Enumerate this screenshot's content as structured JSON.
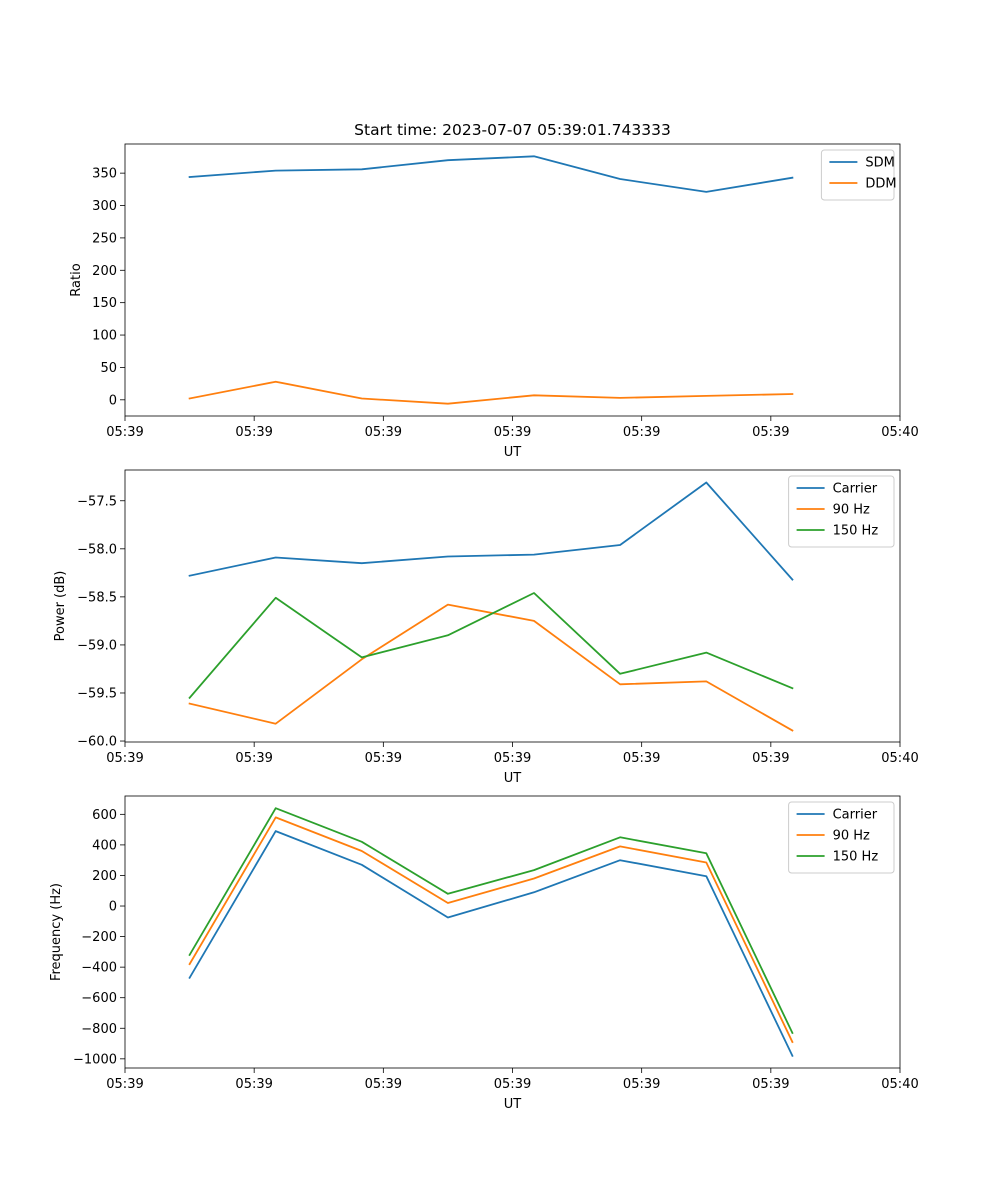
{
  "chart_data": [
    {
      "type": "line",
      "title": "Start time: 2023-07-07 05:39:01.743333",
      "xlabel": "UT",
      "ylabel": "Ratio",
      "x": [
        1,
        2,
        3,
        4,
        5,
        6,
        7,
        8
      ],
      "xlim": [
        0.25,
        9.25
      ],
      "x_ticks": [
        0.25,
        1.75,
        3.25,
        4.75,
        6.25,
        7.75,
        9.25
      ],
      "x_tick_labels": [
        "05:39",
        "05:39",
        "05:39",
        "05:39",
        "05:39",
        "05:39",
        "05:40"
      ],
      "ylim": [
        -25,
        395
      ],
      "y_ticks": [
        0,
        50,
        100,
        150,
        200,
        250,
        300,
        350
      ],
      "y_tick_labels": [
        "0",
        "50",
        "100",
        "150",
        "200",
        "250",
        "300",
        "350"
      ],
      "legend_position": "top-right",
      "series": [
        {
          "name": "SDM",
          "color": "#1f77b4",
          "values": [
            344,
            354,
            356,
            370,
            376,
            341,
            321,
            343
          ]
        },
        {
          "name": "DDM",
          "color": "#ff7f0e",
          "values": [
            2,
            28,
            2,
            -6,
            7,
            3,
            6,
            9
          ]
        }
      ]
    },
    {
      "type": "line",
      "title": "",
      "xlabel": "UT",
      "ylabel": "Power (dB)",
      "x": [
        1,
        2,
        3,
        4,
        5,
        6,
        7,
        8
      ],
      "xlim": [
        0.25,
        9.25
      ],
      "x_ticks": [
        0.25,
        1.75,
        3.25,
        4.75,
        6.25,
        7.75,
        9.25
      ],
      "x_tick_labels": [
        "05:39",
        "05:39",
        "05:39",
        "05:39",
        "05:39",
        "05:39",
        "05:40"
      ],
      "ylim": [
        -60.01,
        -57.18
      ],
      "y_ticks": [
        -60.0,
        -59.5,
        -59.0,
        -58.5,
        -58.0,
        -57.5
      ],
      "y_tick_labels": [
        "−60.0",
        "−59.5",
        "−59.0",
        "−58.5",
        "−58.0",
        "−57.5"
      ],
      "legend_position": "top-right",
      "series": [
        {
          "name": "Carrier",
          "color": "#1f77b4",
          "values": [
            -58.28,
            -58.09,
            -58.15,
            -58.08,
            -58.06,
            -57.96,
            -57.31,
            -58.32
          ]
        },
        {
          "name": "90 Hz",
          "color": "#ff7f0e",
          "values": [
            -59.61,
            -59.82,
            -59.15,
            -58.58,
            -58.75,
            -59.41,
            -59.38,
            -59.89
          ]
        },
        {
          "name": "150 Hz",
          "color": "#2ca02c",
          "values": [
            -59.55,
            -58.51,
            -59.13,
            -58.9,
            -58.46,
            -59.3,
            -59.08,
            -59.45
          ]
        }
      ]
    },
    {
      "type": "line",
      "title": "",
      "xlabel": "UT",
      "ylabel": "Frequency (Hz)",
      "x": [
        1,
        2,
        3,
        4,
        5,
        6,
        7,
        8
      ],
      "xlim": [
        0.25,
        9.25
      ],
      "x_ticks": [
        0.25,
        1.75,
        3.25,
        4.75,
        6.25,
        7.75,
        9.25
      ],
      "x_tick_labels": [
        "05:39",
        "05:39",
        "05:39",
        "05:39",
        "05:39",
        "05:39",
        "05:40"
      ],
      "ylim": [
        -1060,
        720
      ],
      "y_ticks": [
        -1000,
        -800,
        -600,
        -400,
        -200,
        0,
        200,
        400,
        600
      ],
      "y_tick_labels": [
        "−1000",
        "−800",
        "−600",
        "−400",
        "−200",
        "0",
        "200",
        "400",
        "600"
      ],
      "legend_position": "top-right",
      "series": [
        {
          "name": "Carrier",
          "color": "#1f77b4",
          "values": [
            -470,
            490,
            270,
            -75,
            90,
            300,
            195,
            -980
          ]
        },
        {
          "name": "90 Hz",
          "color": "#ff7f0e",
          "values": [
            -380,
            580,
            360,
            20,
            180,
            390,
            285,
            -890
          ]
        },
        {
          "name": "150 Hz",
          "color": "#2ca02c",
          "values": [
            -320,
            640,
            420,
            80,
            235,
            450,
            345,
            -830
          ]
        }
      ]
    }
  ]
}
